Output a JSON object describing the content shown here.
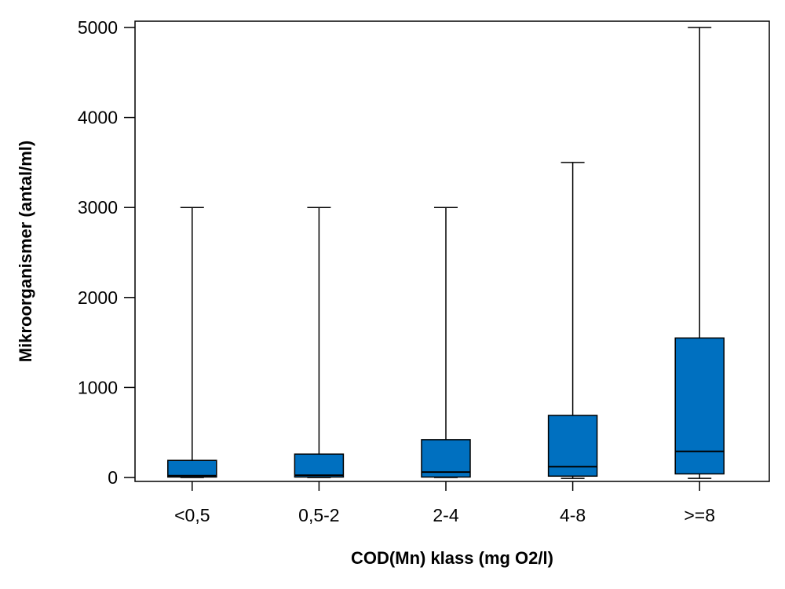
{
  "chart_data": {
    "type": "boxplot",
    "title": "",
    "xlabel": "COD(Mn) klass (mg O2/l)",
    "ylabel": "Mikroorganismer (antal/ml)",
    "ylim": [
      -30,
      5070
    ],
    "yticks": [
      0,
      1000,
      2000,
      3000,
      4000,
      5000
    ],
    "ytick_labels": [
      "0",
      "1000",
      "2000",
      "3000",
      "4000",
      "5000"
    ],
    "categories": [
      "<0,5",
      "0,5-2",
      "2-4",
      "4-8",
      ">=8"
    ],
    "boxes": [
      {
        "category": "<0,5",
        "whisker_low": 0,
        "q1": 5,
        "median": 20,
        "q3": 190,
        "whisker_high": 3000
      },
      {
        "category": "0,5-2",
        "whisker_low": 0,
        "q1": 5,
        "median": 25,
        "q3": 260,
        "whisker_high": 3000
      },
      {
        "category": "2-4",
        "whisker_low": 0,
        "q1": 5,
        "median": 60,
        "q3": 420,
        "whisker_high": 3000
      },
      {
        "category": "4-8",
        "whisker_low": -10,
        "q1": 15,
        "median": 120,
        "q3": 690,
        "whisker_high": 3500
      },
      {
        "category": ">=8",
        "whisker_low": -10,
        "q1": 40,
        "median": 290,
        "q3": 1550,
        "whisker_high": 5000
      }
    ],
    "box_color": "#0070C0",
    "grid": false,
    "legend": "none"
  }
}
